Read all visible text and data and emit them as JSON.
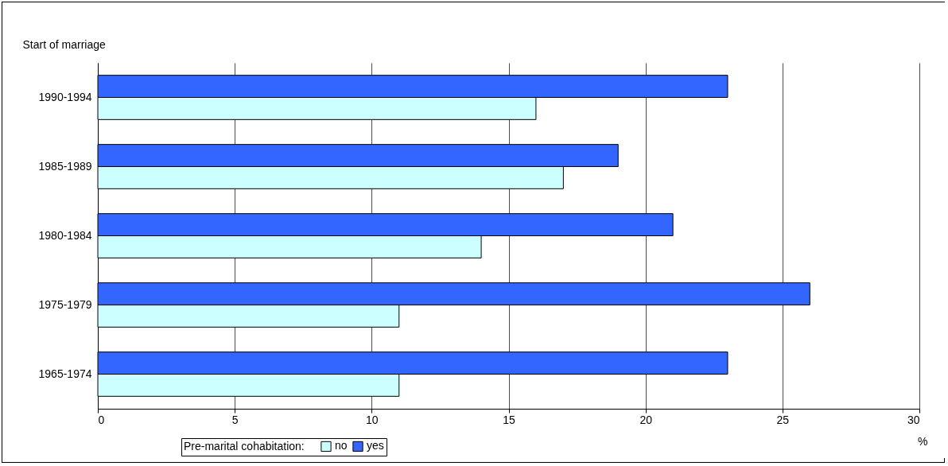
{
  "chart_data": {
    "type": "bar",
    "orientation": "horizontal",
    "categories": [
      "1990-1994",
      "1985-1989",
      "1980-1984",
      "1975-1979",
      "1965-1974"
    ],
    "series": [
      {
        "name": "no",
        "color": "#ccffff",
        "values": [
          16,
          17,
          14,
          11,
          11
        ]
      },
      {
        "name": "yes",
        "color": "#3366ff",
        "values": [
          23,
          19,
          21,
          26,
          23
        ]
      }
    ],
    "xlabel": "%",
    "ylabel": "Start of marriage",
    "legend_title": "Pre-marital cohabitation:",
    "xlim": [
      0,
      30
    ],
    "xticks": [
      0,
      5,
      10,
      15,
      20,
      25,
      30
    ],
    "grid": "x",
    "legend": "bottom"
  }
}
